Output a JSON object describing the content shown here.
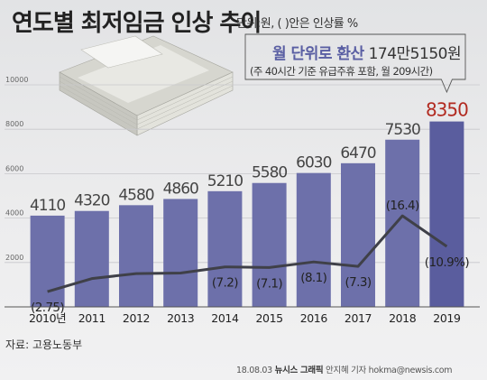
{
  "title": "연도별 최저임금 인상 추이",
  "unit_note": "단위:원, ( )안은 인상률 %",
  "subtitle": {
    "label": "월 단위로 환산",
    "value": "174만5150원",
    "detail": "(주 40시간 기준 유급주휴 포함, 월 209시간)"
  },
  "source": "자료: 고용노동부",
  "credit": {
    "date": "18.08.03",
    "agency": "뉴시스 그래픽",
    "reporter": "안지혜 기자 hokma@newsis.com"
  },
  "colors": {
    "bar": "#6d70aa",
    "bar_highlight": "#5a5d9e",
    "line": "#3f4048",
    "value_text": "#444444",
    "value_highlight": "#b22a20"
  },
  "chart_data": {
    "type": "bar",
    "categories": [
      "2010년",
      "2011",
      "2012",
      "2013",
      "2014",
      "2015",
      "2016",
      "2017",
      "2018",
      "2019"
    ],
    "values": [
      4110,
      4320,
      4580,
      4860,
      5210,
      5580,
      6030,
      6470,
      7530,
      8350
    ],
    "value_labels": [
      "4110",
      "4320",
      "4580",
      "4860",
      "5210",
      "5580",
      "6030",
      "6470",
      "7530",
      "8350"
    ],
    "yticks": [
      2000,
      4000,
      6000,
      8000,
      10000
    ],
    "ytick_labels": [
      "2000",
      "4000",
      "6000",
      "8000",
      "10000"
    ],
    "ylim": [
      0,
      10000
    ],
    "highlight_index": 9,
    "overlay_line": {
      "values": [
        2.75,
        5.1,
        6.0,
        6.1,
        7.2,
        7.1,
        8.1,
        7.3,
        16.4,
        10.9
      ],
      "labels": [
        "(2.75)",
        "",
        "",
        "",
        "(7.2)",
        "(7.1)",
        "(8.1)",
        "(7.3)",
        "(16.4)",
        "(10.9%)"
      ],
      "ylim": [
        0,
        40
      ]
    }
  }
}
